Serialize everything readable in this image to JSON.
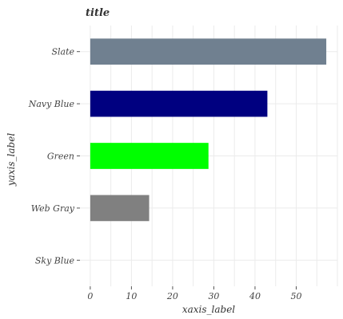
{
  "chart_data": {
    "type": "bar",
    "orientation": "horizontal",
    "title": "title",
    "xlabel": "xaxis_label",
    "ylabel": "yaxis_label",
    "categories": [
      "Sky Blue",
      "Web Gray",
      "Green",
      "Navy Blue",
      "Slate"
    ],
    "values": [
      0,
      14.3,
      28.7,
      43.0,
      57.3
    ],
    "colors": [
      "#87ceeb",
      "#808080",
      "#00ff00",
      "#000080",
      "#708090"
    ],
    "xlim": [
      -2.5,
      60
    ],
    "xticks": [
      0,
      10,
      20,
      30,
      40,
      50
    ],
    "xtick_labels": [
      "0",
      "10",
      "20",
      "30",
      "40",
      "50"
    ],
    "grid": true,
    "legend": "none"
  }
}
